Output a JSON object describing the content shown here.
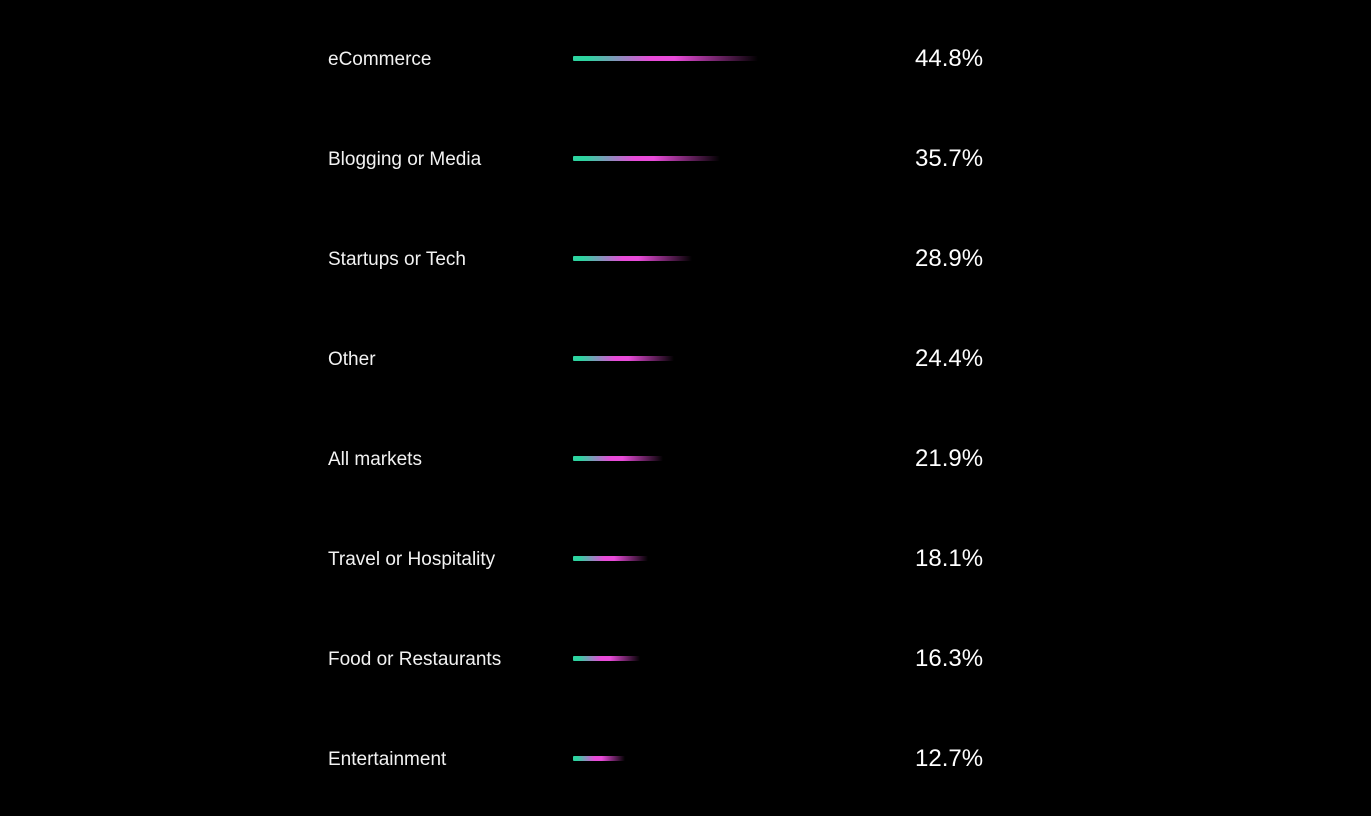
{
  "colors": {
    "background": "#000000",
    "bar_start": "#2dd4a0",
    "bar_mid": "#e94bd9",
    "bar_end": "#000000"
  },
  "chart_data": {
    "type": "bar",
    "orientation": "horizontal",
    "categories": [
      "eCommerce",
      "Blogging or Media",
      "Startups or Tech",
      "Other",
      "All markets",
      "Travel or Hospitality",
      "Food or Restaurants",
      "Entertainment"
    ],
    "values": [
      44.8,
      35.7,
      28.9,
      24.4,
      21.9,
      18.1,
      16.3,
      12.7
    ],
    "value_labels": [
      "44.8%",
      "35.7%",
      "28.9%",
      "24.4%",
      "21.9%",
      "18.1%",
      "16.3%",
      "12.7%"
    ],
    "xlim": [
      0,
      100
    ],
    "grid": false,
    "legend": "none"
  }
}
